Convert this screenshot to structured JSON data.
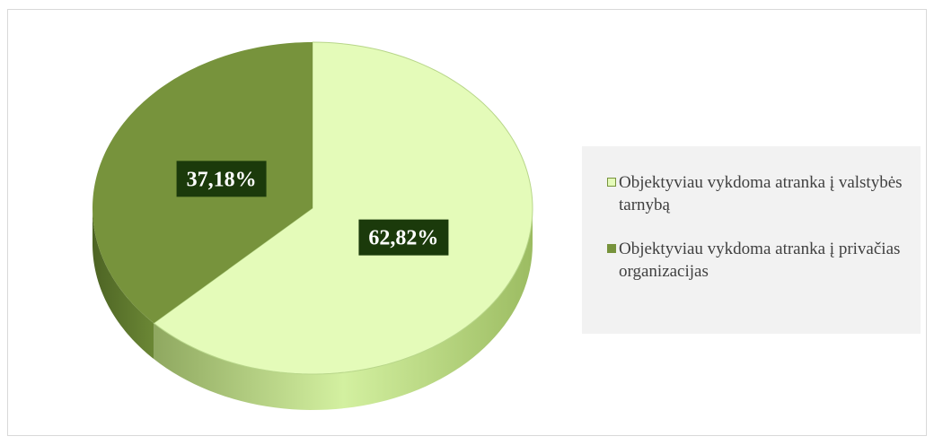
{
  "chart_data": {
    "type": "pie",
    "categories": [
      "Objektyviau vykdoma atranka į valstybės tarnybą",
      "Objektyviau vykdoma atranka į privačias organizacijas"
    ],
    "values": [
      62.82,
      37.18
    ],
    "value_labels": [
      "62,82%",
      "37,18%"
    ],
    "colors": [
      "#e4fbb9",
      "#77933c"
    ],
    "legend": "right"
  }
}
